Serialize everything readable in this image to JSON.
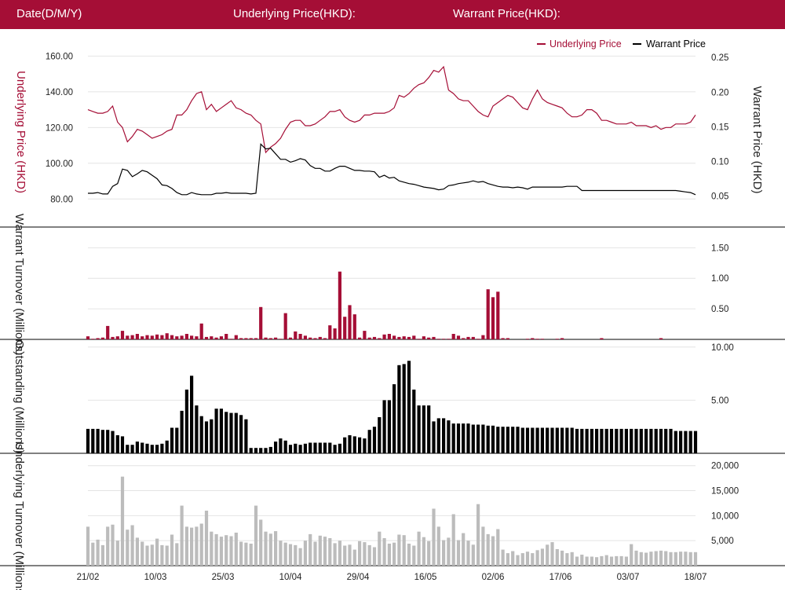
{
  "header": {
    "date_label": "Date(D/M/Y)",
    "underlying_label": "Underlying Price(HKD):",
    "warrant_label": "Warrant Price(HKD):"
  },
  "colors": {
    "header_bg": "#a50e36",
    "underlying": "#a50e36",
    "warrant": "#000000",
    "turnover_underlying": "#bcbcbc",
    "grid": "#e4e4e4"
  },
  "chart_data": [
    {
      "type": "line",
      "legend": [
        "Underlying Price",
        "Warrant Price"
      ],
      "legend_position": "top-right",
      "ylabel_left": "Underlying Price (HKD)",
      "ylabel_right": "Warrant  Price (HKD)",
      "y_left_ticks": [
        "80.00",
        "100.00",
        "120.00",
        "140.00",
        "160.00"
      ],
      "y_right_ticks": [
        "0.05",
        "0.10",
        "0.15",
        "0.20",
        "0.25"
      ],
      "ylim_left": [
        70,
        165
      ],
      "ylim_right": [
        0.02,
        0.265
      ],
      "grid": true,
      "series": [
        {
          "name": "Underlying Price",
          "values": [
            130,
            129,
            128,
            128,
            129,
            132,
            123,
            120,
            112,
            115,
            119,
            118,
            116,
            114,
            115,
            116,
            118,
            119,
            127,
            127,
            130,
            135,
            139,
            140,
            130,
            133,
            129,
            131,
            133,
            135,
            131,
            130,
            128,
            127,
            124,
            122,
            106,
            109,
            111,
            114,
            119,
            123,
            124,
            124,
            121,
            121,
            122,
            124,
            126,
            129,
            129,
            130,
            126,
            124,
            123,
            124,
            127,
            127,
            128,
            128,
            128,
            129,
            131,
            138,
            137,
            139,
            142,
            144,
            145,
            148,
            152,
            151,
            154,
            141,
            139,
            136,
            135,
            135,
            132,
            129,
            127,
            126,
            132,
            134,
            136,
            138,
            137,
            134,
            131,
            130,
            136,
            141,
            136,
            134,
            133,
            132,
            131,
            128,
            126,
            126,
            127,
            130,
            130,
            128,
            124,
            124,
            123,
            122,
            122,
            122,
            123,
            121,
            121,
            121,
            120,
            121,
            119,
            120,
            120,
            122,
            122,
            122,
            123,
            127
          ]
        },
        {
          "name": "Warrant Price",
          "values": [
            0.054,
            0.054,
            0.055,
            0.053,
            0.053,
            0.064,
            0.068,
            0.089,
            0.087,
            0.078,
            0.082,
            0.087,
            0.085,
            0.08,
            0.075,
            0.066,
            0.065,
            0.061,
            0.055,
            0.052,
            0.052,
            0.055,
            0.053,
            0.052,
            0.052,
            0.052,
            0.054,
            0.054,
            0.055,
            0.054,
            0.054,
            0.054,
            0.054,
            0.053,
            0.054,
            0.125,
            0.118,
            0.119,
            0.111,
            0.103,
            0.103,
            0.099,
            0.101,
            0.104,
            0.102,
            0.094,
            0.09,
            0.09,
            0.086,
            0.086,
            0.09,
            0.093,
            0.093,
            0.09,
            0.087,
            0.087,
            0.086,
            0.086,
            0.085,
            0.077,
            0.08,
            0.076,
            0.077,
            0.072,
            0.07,
            0.068,
            0.067,
            0.065,
            0.063,
            0.062,
            0.061,
            0.059,
            0.06,
            0.065,
            0.066,
            0.068,
            0.069,
            0.07,
            0.072,
            0.07,
            0.071,
            0.068,
            0.066,
            0.064,
            0.063,
            0.063,
            0.062,
            0.063,
            0.062,
            0.06,
            0.063,
            0.063,
            0.063,
            0.063,
            0.063,
            0.063,
            0.063,
            0.064,
            0.064,
            0.064,
            0.058,
            0.058,
            0.058,
            0.058,
            0.058,
            0.058,
            0.058,
            0.058,
            0.058,
            0.058,
            0.058,
            0.058,
            0.058,
            0.058,
            0.058,
            0.058,
            0.058,
            0.058,
            0.058,
            0.058,
            0.057,
            0.056,
            0.055,
            0.052
          ]
        }
      ]
    },
    {
      "type": "bar",
      "series_name": "Warrant Turnover",
      "ylabel": "Warrant  Turnover (Millions)",
      "y_ticks": [
        "0.50",
        "1.00",
        "1.50"
      ],
      "ylim": [
        0,
        1.8
      ],
      "values": [
        0.05,
        0.01,
        0.02,
        0.03,
        0.22,
        0.04,
        0.05,
        0.14,
        0.06,
        0.07,
        0.09,
        0.05,
        0.07,
        0.06,
        0.08,
        0.07,
        0.1,
        0.07,
        0.05,
        0.06,
        0.09,
        0.06,
        0.05,
        0.26,
        0.04,
        0.05,
        0.03,
        0.05,
        0.09,
        0.01,
        0.07,
        0.02,
        0.02,
        0.02,
        0.02,
        0.53,
        0.03,
        0.02,
        0.03,
        0.01,
        0.43,
        0.03,
        0.13,
        0.09,
        0.06,
        0.03,
        0.02,
        0.04,
        0.02,
        0.23,
        0.18,
        1.11,
        0.37,
        0.56,
        0.41,
        0.03,
        0.14,
        0.03,
        0.04,
        0.02,
        0.08,
        0.09,
        0.06,
        0.04,
        0.05,
        0.04,
        0.06,
        0.01,
        0.05,
        0.03,
        0.04,
        0.01,
        0.01,
        0.01,
        0.09,
        0.06,
        0.02,
        0.04,
        0.04,
        0.01,
        0.07,
        0.82,
        0.69,
        0.78,
        0.02,
        0.02,
        0,
        0,
        0,
        0.01,
        0.02,
        0.01,
        0.01,
        0,
        0,
        0.01,
        0.02,
        0,
        0,
        0,
        0,
        0,
        0,
        0,
        0.02,
        0,
        0,
        0,
        0,
        0,
        0,
        0,
        0,
        0,
        0,
        0,
        0.02,
        0,
        0,
        0,
        0,
        0,
        0,
        0
      ]
    },
    {
      "type": "bar",
      "series_name": "Outstanding",
      "ylabel": "Outstanding (Millions)",
      "y_ticks": [
        "5.00",
        "10.00"
      ],
      "ylim": [
        0,
        10.5
      ],
      "values": [
        2.3,
        2.3,
        2.3,
        2.2,
        2.2,
        2.1,
        1.7,
        1.6,
        0.8,
        0.8,
        1.1,
        1.0,
        0.9,
        0.8,
        0.8,
        0.9,
        1.2,
        2.4,
        2.4,
        4.0,
        6.0,
        7.3,
        4.5,
        3.5,
        3.0,
        3.2,
        4.2,
        4.2,
        3.9,
        3.8,
        3.8,
        3.6,
        3.2,
        0.5,
        0.5,
        0.5,
        0.5,
        0.6,
        1.1,
        1.4,
        1.2,
        0.8,
        0.9,
        0.8,
        0.9,
        1.0,
        1.0,
        1.0,
        1.0,
        1.0,
        0.8,
        0.9,
        1.5,
        1.7,
        1.6,
        1.5,
        1.4,
        2.2,
        2.5,
        3.4,
        5.0,
        5.0,
        6.5,
        8.3,
        8.4,
        8.7,
        6.0,
        4.5,
        4.5,
        4.5,
        3.0,
        3.3,
        3.3,
        3.1,
        2.8,
        2.8,
        2.8,
        2.8,
        2.7,
        2.7,
        2.7,
        2.6,
        2.6,
        2.5,
        2.5,
        2.5,
        2.5,
        2.5,
        2.4,
        2.4,
        2.4,
        2.4,
        2.4,
        2.4,
        2.4,
        2.4,
        2.4,
        2.4,
        2.4,
        2.3,
        2.3,
        2.3,
        2.3,
        2.3,
        2.3,
        2.3,
        2.3,
        2.3,
        2.3,
        2.3,
        2.3,
        2.3,
        2.3,
        2.3,
        2.3,
        2.3,
        2.3,
        2.3,
        2.3,
        2.1,
        2.1,
        2.1,
        2.1,
        2.1
      ]
    },
    {
      "type": "bar",
      "series_name": "Underlying Turnover",
      "ylabel": "Underlying Turnover (Millions)",
      "y_ticks": [
        "5,000",
        "10,000",
        "15,000",
        "20,000"
      ],
      "ylim": [
        0,
        22000
      ],
      "x_labels": [
        "21/02",
        "10/03",
        "25/03",
        "10/04",
        "29/04",
        "16/05",
        "02/06",
        "17/06",
        "03/07",
        "18/07"
      ],
      "values": [
        7800,
        4600,
        5200,
        4100,
        7800,
        8200,
        5000,
        17800,
        7200,
        8100,
        5600,
        4800,
        4000,
        4200,
        5400,
        4100,
        4000,
        6200,
        4500,
        12000,
        7800,
        7600,
        7800,
        8400,
        11000,
        6800,
        6300,
        5800,
        6100,
        5900,
        6600,
        4800,
        4600,
        4400,
        12000,
        9200,
        6800,
        6400,
        6900,
        5000,
        4600,
        4300,
        4100,
        3500,
        5000,
        6300,
        4800,
        6000,
        5800,
        5500,
        4500,
        5000,
        4000,
        4200,
        3200,
        4900,
        4700,
        4100,
        3700,
        6800,
        5500,
        4400,
        4600,
        6200,
        6100,
        4400,
        4000,
        6800,
        5700,
        4900,
        11400,
        7800,
        5100,
        5600,
        10300,
        5100,
        6500,
        5000,
        4200,
        12300,
        7800,
        6300,
        5900,
        7300,
        3200,
        2500,
        2900,
        2100,
        2500,
        2800,
        2500,
        3100,
        3400,
        4200,
        4700,
        3300,
        3000,
        2500,
        2700,
        1800,
        2200,
        1800,
        1800,
        1700,
        1900,
        2100,
        1800,
        1900,
        1900,
        1800,
        4300,
        3000,
        2700,
        2600,
        2800,
        2900,
        3000,
        2900,
        2700,
        2700,
        2800,
        2800,
        2700,
        2700
      ]
    }
  ]
}
